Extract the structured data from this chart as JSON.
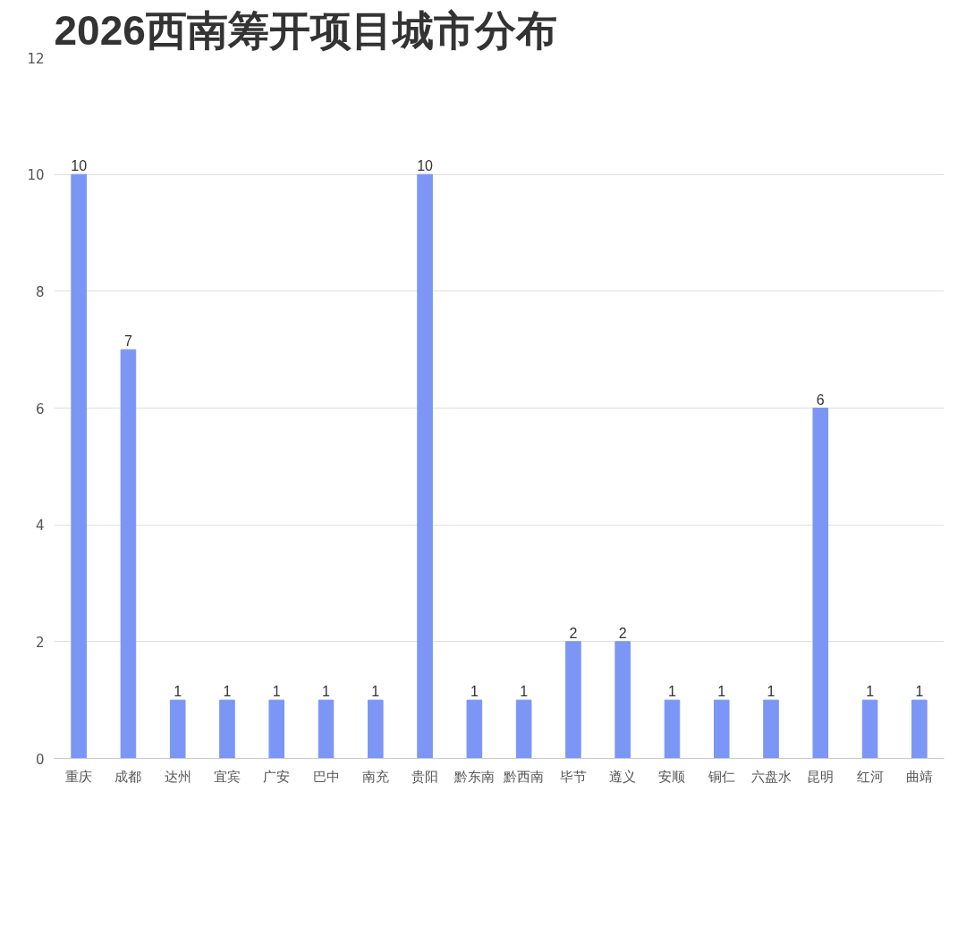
{
  "chart_data": {
    "type": "bar",
    "title": "2026西南筹开项目城市分布",
    "categories": [
      "重庆",
      "成都",
      "达州",
      "宜宾",
      "广安",
      "巴中",
      "南充",
      "贵阳",
      "黔东南",
      "黔西南",
      "毕节",
      "遵义",
      "安顺",
      "铜仁",
      "六盘水",
      "昆明",
      "红河",
      "曲靖"
    ],
    "values": [
      10,
      7,
      1,
      1,
      1,
      1,
      1,
      10,
      1,
      1,
      2,
      2,
      1,
      1,
      1,
      6,
      1,
      1
    ],
    "color": "#7b96f5",
    "ylim": [
      0,
      12
    ],
    "yticks": [
      0,
      2,
      4,
      6,
      8,
      10,
      12
    ],
    "grid": "y",
    "data_labels": true
  }
}
